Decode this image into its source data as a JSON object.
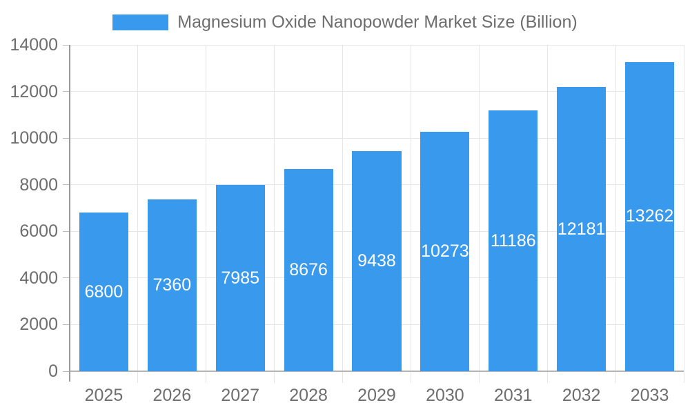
{
  "chart_data": {
    "type": "bar",
    "title": "Magnesium Oxide Nanopowder Market Size (Billion)",
    "categories": [
      "2025",
      "2026",
      "2027",
      "2028",
      "2029",
      "2030",
      "2031",
      "2032",
      "2033"
    ],
    "values": [
      6800,
      7360,
      7985,
      8676,
      9438,
      10273,
      11186,
      12181,
      13262
    ],
    "value_labels": [
      "6800",
      "7360",
      "7985",
      "8676",
      "9438",
      "10273",
      "11186",
      "12181",
      "13262"
    ],
    "xlabel": "",
    "ylabel": "",
    "ylim": [
      0,
      14000
    ],
    "ytick_step": 2000,
    "yticks": [
      0,
      2000,
      4000,
      6000,
      8000,
      10000,
      12000,
      14000
    ],
    "grid": true,
    "legend_position": "top",
    "colors": {
      "bar": "#3999ec",
      "bar_label_text": "#ffffff",
      "axis_text": "#6e6e6e",
      "legend_text": "#6e6e6e",
      "gridline": "#e6e6e6",
      "axis_line": "#9a9a9a",
      "baseline": "#b3b3b3",
      "tick": "#b9b9b9",
      "background": "#ffffff"
    }
  }
}
